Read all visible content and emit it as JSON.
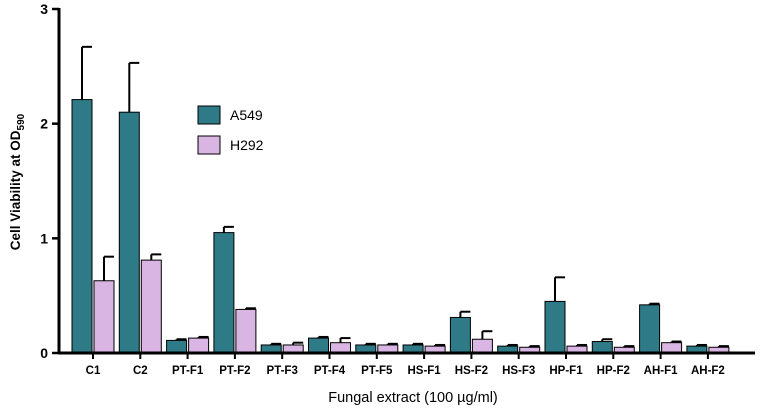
{
  "chart_data": {
    "type": "bar",
    "title": "",
    "xlabel": "Fungal extract (100 µg/ml)",
    "ylabel": {
      "main": "Cell Viability at OD",
      "subscript": "590"
    },
    "ylim": [
      0,
      3
    ],
    "yticks": [
      "0",
      "1",
      "2",
      "3"
    ],
    "grid": false,
    "legend_position": "upper-left",
    "categories": [
      "C1",
      "C2",
      "PT-F1",
      "PT-F2",
      "PT-F3",
      "PT-F4",
      "PT-F5",
      "HS-F1",
      "HS-F2",
      "HS-F3",
      "HP-F1",
      "HP-F2",
      "AH-F1",
      "AH-F2"
    ],
    "series": [
      {
        "name": "A549",
        "color": "#2e7a86",
        "values": [
          2.21,
          2.1,
          0.11,
          1.05,
          0.07,
          0.13,
          0.07,
          0.07,
          0.31,
          0.06,
          0.45,
          0.1,
          0.42,
          0.06
        ],
        "errors": [
          0.46,
          0.43,
          0.01,
          0.05,
          0.01,
          0.01,
          0.01,
          0.01,
          0.05,
          0.01,
          0.21,
          0.02,
          0.01,
          0.01
        ]
      },
      {
        "name": "H292",
        "color": "#d9b5e3",
        "values": [
          0.63,
          0.81,
          0.13,
          0.38,
          0.07,
          0.09,
          0.07,
          0.06,
          0.12,
          0.05,
          0.06,
          0.05,
          0.09,
          0.05
        ],
        "errors": [
          0.21,
          0.05,
          0.01,
          0.01,
          0.02,
          0.04,
          0.01,
          0.01,
          0.07,
          0.01,
          0.01,
          0.01,
          0.01,
          0.01
        ]
      }
    ]
  }
}
